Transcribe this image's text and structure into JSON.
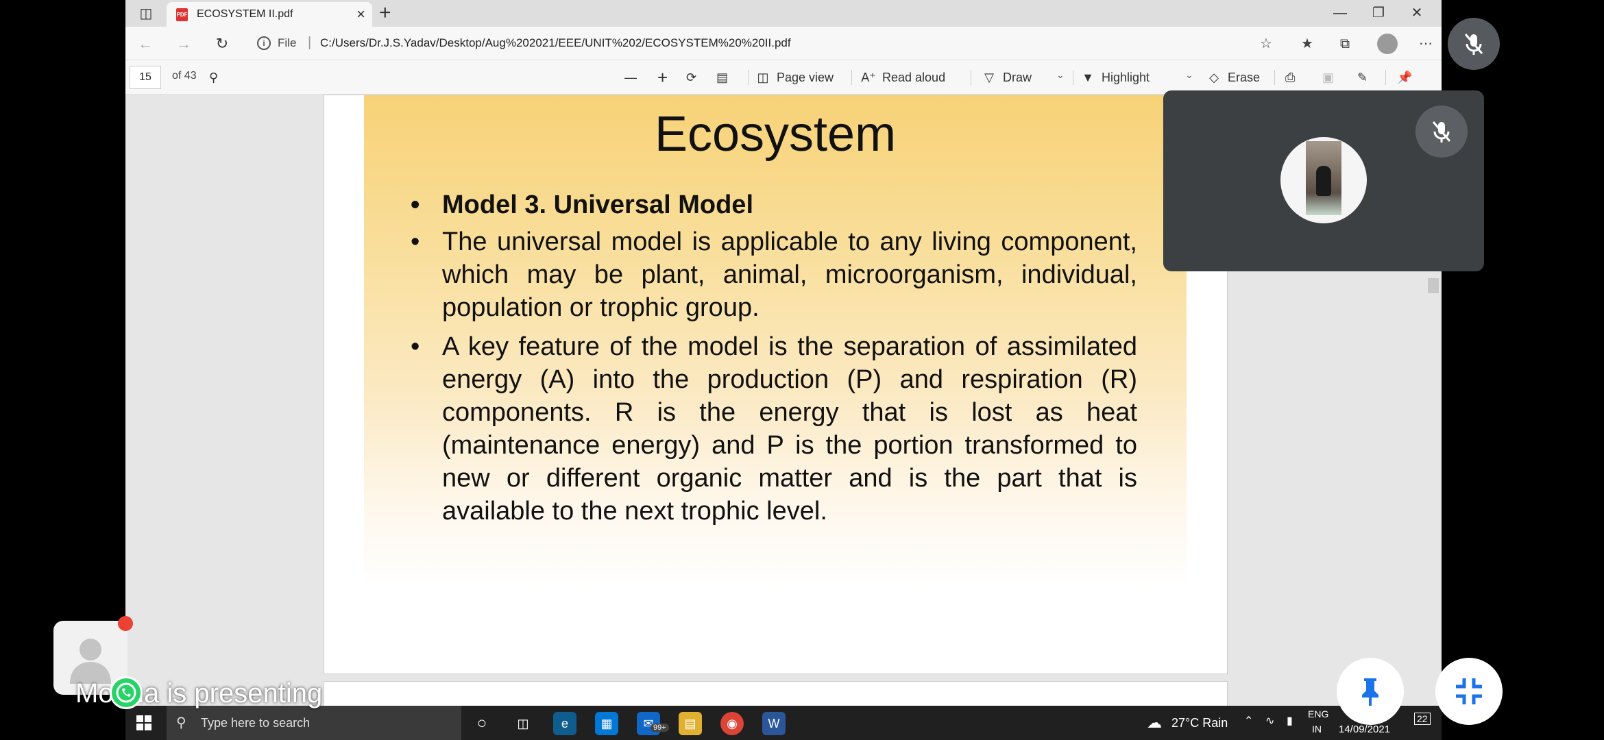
{
  "browser": {
    "tab_title": "ECOSYSTEM II.pdf",
    "new_tab_symbol": "+",
    "url_label": "File",
    "url": "C:/Users/Dr.J.S.Yadav/Desktop/Aug%202021/EEE/UNIT%202/ECOSYSTEM%20%20II.pdf"
  },
  "pdf_toolbar": {
    "page_current": "15",
    "page_total": "of 43",
    "page_view": "Page view",
    "read_aloud": "Read aloud",
    "draw": "Draw",
    "highlight": "Highlight",
    "erase": "Erase"
  },
  "slide": {
    "title": "Ecosystem",
    "bullets": [
      "Model 3. Universal Model",
      "The universal model is applicable to any living component, which may be plant, animal, microorganism, individual, population or trophic group.",
      "A key feature of the model is the separation of assimilated energy (A) into the production (P) and respiration (R) components. R is the energy that is lost as heat (maintenance energy) and P is the portion transformed to new or different organic matter and is the part that is available to the next trophic level."
    ]
  },
  "taskbar": {
    "search_placeholder": "Type here to search",
    "mail_badge": "99+",
    "weather": "27°C Rain",
    "lang_1": "ENG",
    "lang_2": "IN",
    "date": "14/09/2021",
    "notifications": "22"
  },
  "meeting": {
    "presenting_label": "Mohna is presenting"
  },
  "colors": {
    "slide_gold": "#f7d277",
    "meet_tile": "#3c4043",
    "meet_blue": "#1a73e8",
    "taskbar": "#202020"
  }
}
